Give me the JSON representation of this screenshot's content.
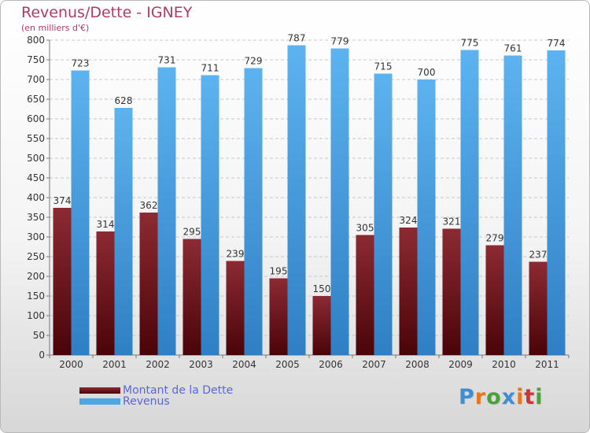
{
  "title": "Revenus/Dette - IGNEY",
  "subtitle": "(en milliers d'€)",
  "logo": {
    "letters": [
      "P",
      "r",
      "o",
      "x",
      "i",
      "t",
      "i"
    ],
    "colors": [
      "#3f8fd0",
      "#e8771a",
      "#4aa03b",
      "#3f8fd0",
      "#e8771a",
      "#d03434",
      "#4aa03b"
    ]
  },
  "chart_data": {
    "type": "bar",
    "categories": [
      "2000",
      "2001",
      "2002",
      "2003",
      "2004",
      "2005",
      "2006",
      "2007",
      "2008",
      "2009",
      "2010",
      "2011"
    ],
    "series": [
      {
        "name": "Montant de la Dette",
        "color": "#7a1520",
        "values": [
          374,
          314,
          362,
          295,
          239,
          195,
          150,
          305,
          324,
          321,
          279,
          237
        ]
      },
      {
        "name": "Revenus",
        "color": "#4ea6e6",
        "values": [
          723,
          628,
          731,
          711,
          729,
          787,
          779,
          715,
          700,
          775,
          761,
          774
        ]
      }
    ],
    "ylim": [
      0,
      800
    ],
    "yticks": [
      0,
      50,
      100,
      150,
      200,
      250,
      300,
      350,
      400,
      450,
      500,
      550,
      600,
      650,
      700,
      750,
      800
    ],
    "grid": true,
    "legend": "bottom-left"
  }
}
